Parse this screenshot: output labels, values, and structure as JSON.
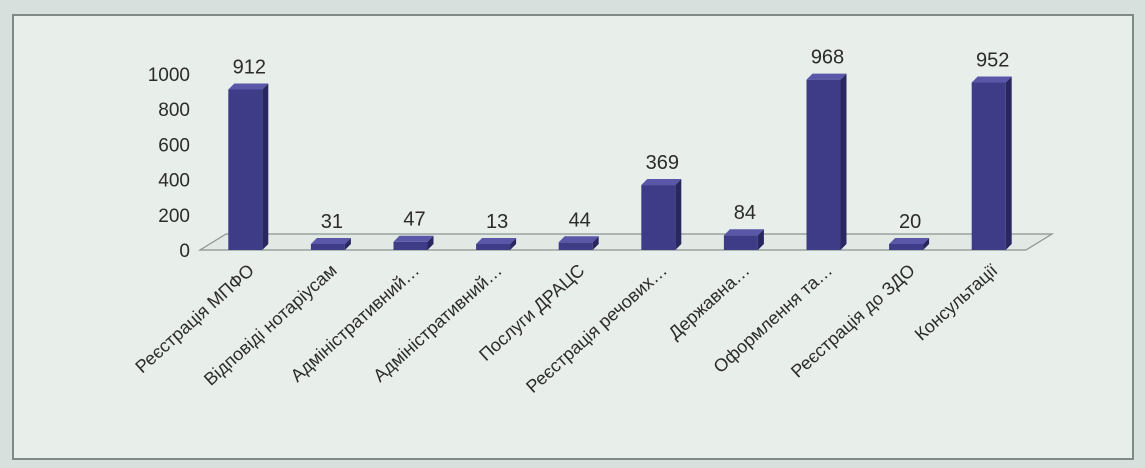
{
  "chart_data": {
    "type": "bar",
    "categories": [
      "Реєстрація МПФО",
      "Відповіді нотаріусам",
      "Адміністративний…",
      "Адміністративний…",
      "Послуги ДРАЦС",
      "Реєстрація речових…",
      "Державна…",
      "Оформлення та…",
      "Реєстрація до ЗДО",
      "Консультації"
    ],
    "values": [
      912,
      31,
      47,
      13,
      44,
      369,
      84,
      968,
      20,
      952
    ],
    "y_ticks": [
      "0",
      "200",
      "400",
      "600",
      "800",
      "1000"
    ],
    "ylim": [
      0,
      1000
    ],
    "bar_color": "#3f3c87",
    "bar_side_color": "#2a2760",
    "bar_top_color": "#5a57a8",
    "title": "",
    "xlabel": "",
    "ylabel": ""
  }
}
